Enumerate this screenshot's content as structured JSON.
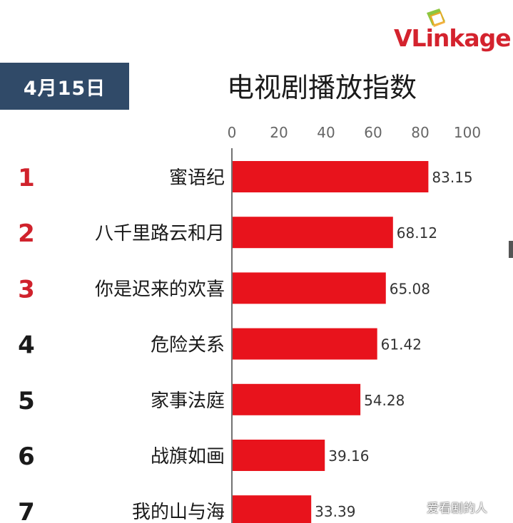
{
  "header": {
    "date": "4月15日",
    "title": "电视剧播放指数",
    "logo": "VLinkage"
  },
  "chart_data": {
    "type": "bar",
    "orientation": "horizontal",
    "title": "电视剧播放指数",
    "xlim": [
      0,
      100
    ],
    "xticks": [
      "0",
      "20",
      "40",
      "60",
      "80",
      "100"
    ],
    "categories": [
      "蜜语纪",
      "八千里路云和月",
      "你是迟来的欢喜",
      "危险关系",
      "家事法庭",
      "战旗如画",
      "我的山与海"
    ],
    "ranks": [
      "1",
      "2",
      "3",
      "4",
      "5",
      "6",
      "7"
    ],
    "values": [
      83.15,
      68.12,
      65.08,
      61.42,
      54.28,
      39.16,
      33.39
    ],
    "value_labels": [
      "83.15",
      "68.12",
      "65.08",
      "61.42",
      "54.28",
      "39.16",
      "33.39"
    ],
    "bar_color": "#e8131c",
    "rank_colors": [
      "#d0222c",
      "#d0222c",
      "#d0222c",
      "#1a1a1a",
      "#1a1a1a",
      "#1a1a1a",
      "#1a1a1a"
    ],
    "grid": false
  },
  "watermark": "爱看剧的人",
  "colors": {
    "date_box": "#304a68",
    "brand_red": "#d4232e"
  }
}
